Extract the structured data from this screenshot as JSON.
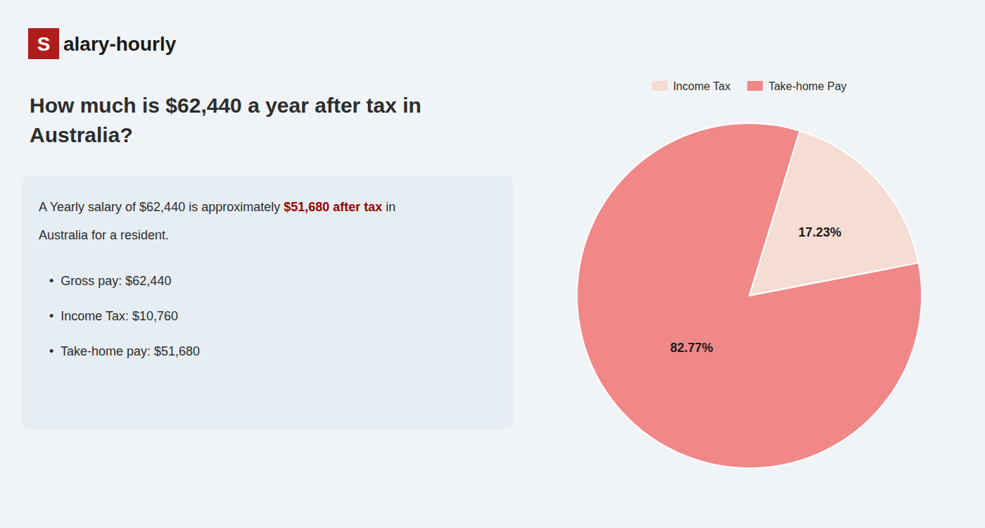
{
  "chart_data": {
    "type": "pie",
    "title": "How much is $62,440 a year after tax in\nAustralia?",
    "categories": [
      "Income Tax",
      "Take-home Pay"
    ],
    "values": [
      17.23,
      82.77
    ],
    "value_labels": [
      "17.23%",
      "82.77%"
    ],
    "colors": [
      "#f5ddd4",
      "#f08888"
    ],
    "data_labels": true,
    "legend": "top",
    "annotations": [
      [
        {
          "text": "S"
        },
        {
          "text": "alary-hourly"
        }
      ],
      [
        {
          "text": "A Yearly salary of $62,440 is approximately "
        },
        {
          "text": "$51,680 after tax",
          "color": "#a00000"
        },
        {
          "text": " in"
        }
      ],
      [
        {
          "text": "Australia for a resident."
        }
      ],
      [
        {
          "text": "•  Gross pay: $62,440"
        }
      ],
      [
        {
          "text": "•  Income Tax: $10,760"
        }
      ],
      [
        {
          "text": "•  Take-home pay: $51,680"
        }
      ]
    ]
  }
}
